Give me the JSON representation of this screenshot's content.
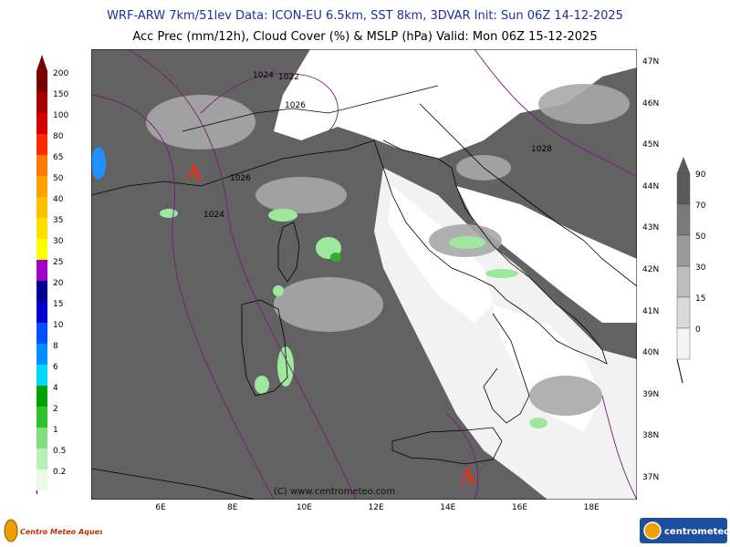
{
  "header": {
    "line1": "WRF-ARW 7km/51lev   Data: ICON-EU 6.5km, SST 8km, 3DVAR   Init: Sun 06Z 14-12-2025",
    "line2": "Acc Prec (mm/12h), Cloud Cover (%) & MSLP (hPa)   Valid: Mon 06Z 15-12-2025"
  },
  "axes": {
    "lat_labels": [
      "47N",
      "46N",
      "45N",
      "44N",
      "43N",
      "42N",
      "41N",
      "40N",
      "39N",
      "38N",
      "37N"
    ],
    "lon_labels": [
      "6E",
      "8E",
      "10E",
      "12E",
      "14E",
      "16E",
      "18E"
    ]
  },
  "precip_scale": {
    "labels": [
      "200",
      "150",
      "100",
      "80",
      "65",
      "50",
      "40",
      "35",
      "30",
      "25",
      "20",
      "15",
      "10",
      "8",
      "6",
      "4",
      "2",
      "1",
      "0.5",
      "0.2"
    ],
    "colors": [
      "#7a0000",
      "#a80000",
      "#d40000",
      "#ff2a00",
      "#ff7a00",
      "#ffa000",
      "#ffc000",
      "#ffe000",
      "#ffff00",
      "#a000c8",
      "#000090",
      "#0000d0",
      "#0050ff",
      "#0090ff",
      "#00d8ff",
      "#00a000",
      "#30c030",
      "#80e080",
      "#b8f0b8",
      "#e8fbe8"
    ]
  },
  "cloud_scale": {
    "labels": [
      "90",
      "70",
      "50",
      "30",
      "15",
      "0"
    ],
    "colors": [
      "#5a5a5a",
      "#7a7a7a",
      "#9a9a9a",
      "#bdbdbd",
      "#dadada",
      "#f4f4f4"
    ]
  },
  "isobar_labels": [
    "1022",
    "1024",
    "1026",
    "1028",
    "1026",
    "1024"
  ],
  "high_markers": [
    "A",
    "A"
  ],
  "credit": "(C) www.centrometeo.com",
  "logos": {
    "left_text": "Centro Meteo Aquesio",
    "right_text": "centrometeo"
  },
  "colors": {
    "title": "#1f2fa0",
    "isobar": "#7a1a7a",
    "high_marker": "#e03020",
    "cloud_dark": "#5f5f5f",
    "land_border": "#000000"
  }
}
